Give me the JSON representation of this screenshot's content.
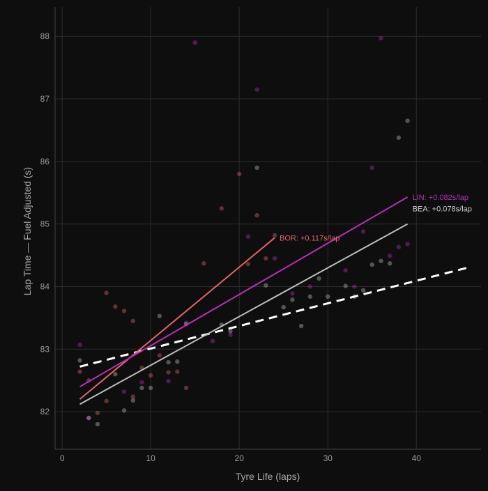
{
  "chart_data": {
    "type": "scatter",
    "title": "",
    "xlabel": "Tyre Life (laps)",
    "ylabel": "Lap Time — Fuel Adjusted (s)",
    "xlim": [
      -0.8,
      47.3
    ],
    "ylim": [
      81.4,
      88.47
    ],
    "xticks": [
      0,
      10,
      20,
      30,
      40
    ],
    "yticks": [
      82,
      83,
      84,
      85,
      86,
      87,
      88
    ],
    "grid": true,
    "series": [
      {
        "name": "BOR",
        "color": "#e06666",
        "points": [
          [
            2,
            82.64
          ],
          [
            3,
            82.5
          ],
          [
            4,
            81.98
          ],
          [
            5,
            82.17
          ],
          [
            5,
            83.9
          ],
          [
            6,
            83.68
          ],
          [
            7,
            83.61
          ],
          [
            8,
            83.45
          ],
          [
            8,
            82.24
          ],
          [
            9,
            82.7
          ],
          [
            10,
            82.58
          ],
          [
            11,
            82.9
          ],
          [
            12,
            82.63
          ],
          [
            13,
            82.64
          ],
          [
            14,
            82.38
          ],
          [
            16,
            84.37
          ],
          [
            18,
            85.25
          ],
          [
            20,
            85.8
          ],
          [
            21,
            84.36
          ],
          [
            22,
            85.14
          ],
          [
            23,
            84.45
          ],
          [
            24,
            84.82
          ]
        ],
        "trend": {
          "x": [
            2,
            24
          ],
          "y": [
            82.2,
            84.78
          ]
        },
        "label": "BOR: +0.117s/lap"
      },
      {
        "name": "LIN",
        "color": "#b62fb6",
        "points": [
          [
            2,
            83.07
          ],
          [
            3,
            81.9
          ],
          [
            7,
            82.32
          ],
          [
            9,
            82.47
          ],
          [
            12,
            82.49
          ],
          [
            14,
            83.42
          ],
          [
            15,
            87.9
          ],
          [
            17,
            83.13
          ],
          [
            19,
            83.23
          ],
          [
            21,
            84.8
          ],
          [
            22,
            87.15
          ],
          [
            24,
            84.45
          ],
          [
            26,
            83.89
          ],
          [
            28,
            84.0
          ],
          [
            32,
            84.26
          ],
          [
            33,
            84.0
          ],
          [
            34,
            84.88
          ],
          [
            35,
            85.9
          ],
          [
            36,
            87.97
          ],
          [
            37,
            84.49
          ],
          [
            38,
            84.63
          ],
          [
            39,
            84.68
          ]
        ],
        "trend": {
          "x": [
            2,
            39
          ],
          "y": [
            82.4,
            85.43
          ]
        },
        "label": "LIN: +0.082s/lap"
      },
      {
        "name": "BEA",
        "color": "#bdbdbd",
        "points": [
          [
            2,
            82.82
          ],
          [
            3,
            81.9
          ],
          [
            4,
            81.8
          ],
          [
            6,
            82.6
          ],
          [
            7,
            82.02
          ],
          [
            8,
            82.18
          ],
          [
            9,
            82.38
          ],
          [
            10,
            82.38
          ],
          [
            11,
            83.53
          ],
          [
            12,
            82.79
          ],
          [
            13,
            82.8
          ],
          [
            14,
            83.4
          ],
          [
            18,
            83.39
          ],
          [
            19,
            83.29
          ],
          [
            22,
            85.9
          ],
          [
            23,
            84.02
          ],
          [
            25,
            83.67
          ],
          [
            26,
            83.79
          ],
          [
            27,
            83.37
          ],
          [
            28,
            83.84
          ],
          [
            29,
            84.13
          ],
          [
            30,
            83.84
          ],
          [
            32,
            84.01
          ],
          [
            33,
            83.84
          ],
          [
            34,
            83.94
          ],
          [
            35,
            84.35
          ],
          [
            36,
            84.41
          ],
          [
            37,
            84.37
          ],
          [
            38,
            86.38
          ],
          [
            39,
            86.65
          ]
        ],
        "trend": {
          "x": [
            2,
            39
          ],
          "y": [
            82.12,
            85.0
          ]
        },
        "label": "BEA: +0.078s/lap"
      }
    ],
    "reference_line": {
      "style": "dashed",
      "color": "#ffffff",
      "x": [
        2,
        46
      ],
      "y": [
        82.72,
        84.31
      ]
    }
  }
}
